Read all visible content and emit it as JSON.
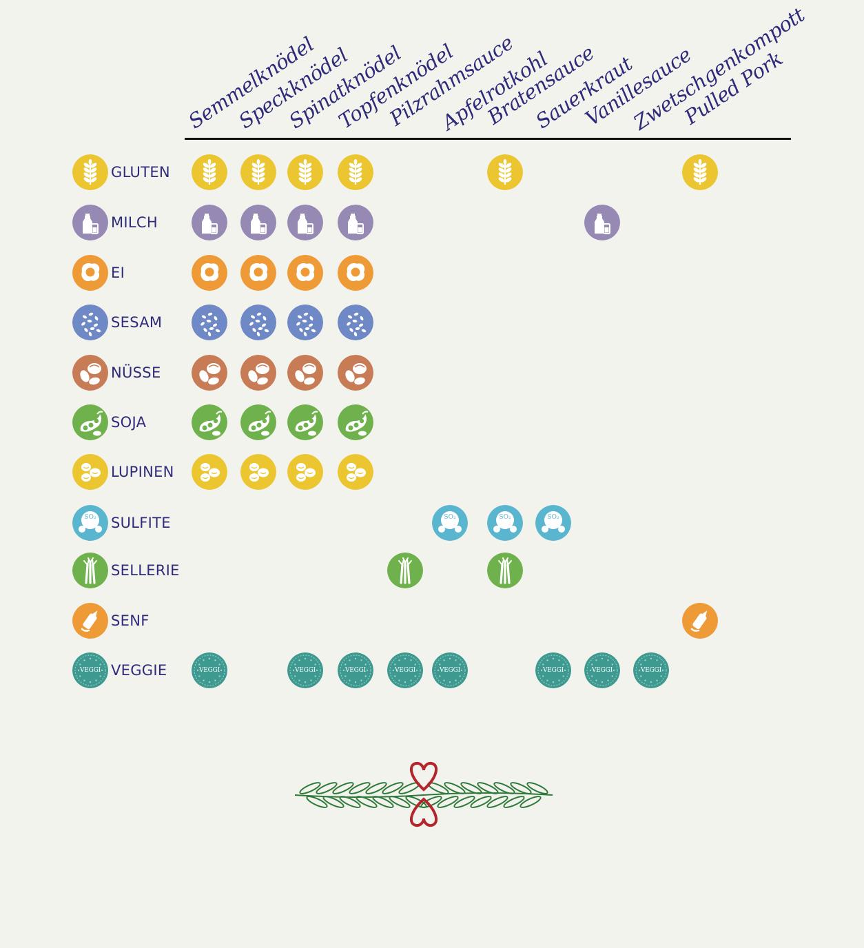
{
  "dishes": [
    "Semmelknödel",
    "Speckknödel",
    "Spinatknödel",
    "Topfenknödel",
    "Pilzrahmsauce",
    "Apfelrotkohl",
    "Bratensauce",
    "Sauerkraut",
    "Vanillesauce",
    "Zwetschgenkompott",
    "Pulled Pork"
  ],
  "allergens": [
    {
      "key": "gluten",
      "label": "GLUTEN",
      "color": "#ebc631",
      "icon": "wheat-icon"
    },
    {
      "key": "milch",
      "label": "MILCH",
      "color": "#9689b4",
      "icon": "milk-bottle-icon"
    },
    {
      "key": "ei",
      "label": "EI",
      "color": "#ee9a36",
      "icon": "fried-egg-icon"
    },
    {
      "key": "sesam",
      "label": "SESAM",
      "color": "#6f88c6",
      "icon": "sesame-seeds-icon"
    },
    {
      "key": "nuesse",
      "label": "NÜSSE",
      "color": "#c77c56",
      "icon": "nuts-icon"
    },
    {
      "key": "soja",
      "label": "SOJA",
      "color": "#6fb24d",
      "icon": "soybean-icon"
    },
    {
      "key": "lupinen",
      "label": "LUPINEN",
      "color": "#ebc631",
      "icon": "lupine-beans-icon"
    },
    {
      "key": "sulfite",
      "label": "SULFITE",
      "color": "#5ab6cf",
      "icon": "so2-icon",
      "text": "SO₂"
    },
    {
      "key": "sellerie",
      "label": "SELLERIE",
      "color": "#6fb24d",
      "icon": "celery-icon"
    },
    {
      "key": "senf",
      "label": "SENF",
      "color": "#ee9a36",
      "icon": "mustard-bottle-icon"
    },
    {
      "key": "veggie",
      "label": "VEGGIE",
      "color": "#3e9990",
      "icon": "veggi-stamp-icon",
      "text": "VEGGI"
    }
  ],
  "matrix": {
    "gluten": [
      0,
      1,
      2,
      3,
      6,
      10
    ],
    "milch": [
      0,
      1,
      2,
      3,
      8
    ],
    "ei": [
      0,
      1,
      2,
      3
    ],
    "sesam": [
      0,
      1,
      2,
      3
    ],
    "nuesse": [
      0,
      1,
      2,
      3
    ],
    "soja": [
      0,
      1,
      2,
      3
    ],
    "lupinen": [
      0,
      1,
      2,
      3
    ],
    "sulfite": [
      5,
      6,
      7
    ],
    "sellerie": [
      4,
      6
    ],
    "senf": [
      10
    ],
    "veggie": [
      0,
      2,
      3,
      4,
      5,
      7,
      8,
      9
    ]
  },
  "ornament": {
    "icon": "heart-laurel-ornament-icon",
    "leaf_color": "#2f7a3a",
    "heart_color": "#b3262c"
  }
}
